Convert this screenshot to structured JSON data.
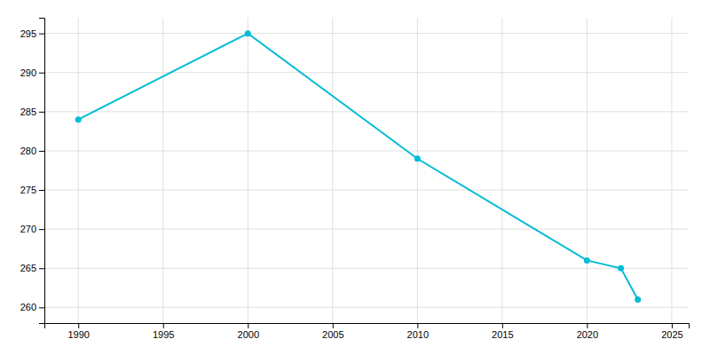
{
  "chart_data": {
    "type": "line",
    "x": [
      1990,
      2000,
      2010,
      2020,
      2022,
      2023
    ],
    "values": [
      284,
      295,
      279,
      266,
      265,
      261
    ],
    "color": "#00bcd4",
    "marker": "circle",
    "xlim": [
      1988,
      2026
    ],
    "ylim": [
      258,
      297
    ],
    "xticks": [
      1990,
      1995,
      2000,
      2005,
      2010,
      2015,
      2020,
      2025
    ],
    "yticks": [
      260,
      265,
      270,
      275,
      280,
      285,
      290,
      295
    ],
    "grid": true
  }
}
